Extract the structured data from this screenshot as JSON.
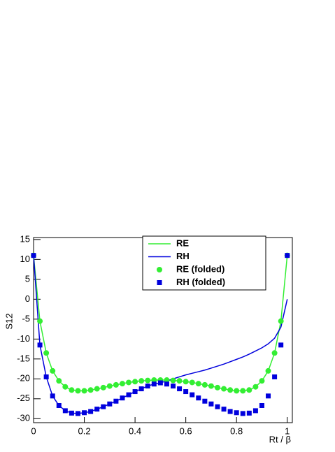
{
  "chart_data": {
    "type": "line",
    "xlabel": "Rt / β",
    "ylabel": "S12",
    "x": [
      0,
      0.025,
      0.05,
      0.075,
      0.1,
      0.125,
      0.15,
      0.175,
      0.2,
      0.225,
      0.25,
      0.275,
      0.3,
      0.325,
      0.35,
      0.375,
      0.4,
      0.425,
      0.45,
      0.475,
      0.5,
      0.525,
      0.55,
      0.575,
      0.6,
      0.625,
      0.65,
      0.675,
      0.7,
      0.725,
      0.75,
      0.775,
      0.8,
      0.825,
      0.85,
      0.875,
      0.9,
      0.925,
      0.95,
      0.975,
      1
    ],
    "series": [
      {
        "name": "RE",
        "color": "#33ee33",
        "style": "line",
        "values": [
          11,
          -5.5,
          -13.5,
          -18,
          -20.5,
          -22,
          -22.8,
          -23,
          -23,
          -22.8,
          -22.5,
          -22.2,
          -21.8,
          -21.5,
          -21.2,
          -20.9,
          -20.7,
          -20.5,
          -20.4,
          -20.3,
          -20.3,
          -20.3,
          -20.4,
          -20.5,
          -20.7,
          -20.9,
          -21.2,
          -21.5,
          -21.8,
          -22.2,
          -22.5,
          -22.8,
          -23,
          -23,
          -22.8,
          -22,
          -20.5,
          -18,
          -13.5,
          -5.5,
          11
        ]
      },
      {
        "name": "RH",
        "color": "#0000dd",
        "style": "line",
        "values": [
          11,
          -11.5,
          -19.5,
          -24.3,
          -26.7,
          -28,
          -28.6,
          -28.7,
          -28.5,
          -28.2,
          -27.6,
          -27,
          -26.3,
          -25.6,
          -24.8,
          -24,
          -23.2,
          -22.5,
          -21.8,
          -21.3,
          -21,
          -20.5,
          -20,
          -19.5,
          -19,
          -18.6,
          -18.2,
          -17.8,
          -17.3,
          -16.8,
          -16.3,
          -15.7,
          -15.1,
          -14.5,
          -13.8,
          -13,
          -12.2,
          -11.2,
          -9.8,
          -7,
          0
        ]
      },
      {
        "name": "RE (folded)",
        "color": "#33ee33",
        "style": "circle",
        "values": [
          11,
          -5.5,
          -13.5,
          -18,
          -20.5,
          -22,
          -22.8,
          -23,
          -23,
          -22.8,
          -22.5,
          -22.2,
          -21.8,
          -21.5,
          -21.2,
          -20.9,
          -20.7,
          -20.5,
          -20.4,
          -20.3,
          -20.3,
          -20.3,
          -20.4,
          -20.5,
          -20.7,
          -20.9,
          -21.2,
          -21.5,
          -21.8,
          -22.2,
          -22.5,
          -22.8,
          -23,
          -23,
          -22.8,
          -22,
          -20.5,
          -18,
          -13.5,
          -5.5,
          11
        ]
      },
      {
        "name": "RH (folded)",
        "color": "#0000dd",
        "style": "square",
        "values": [
          11,
          -11.5,
          -19.5,
          -24.3,
          -26.7,
          -28,
          -28.6,
          -28.7,
          -28.5,
          -28.2,
          -27.6,
          -27,
          -26.3,
          -25.6,
          -24.8,
          -24,
          -23.2,
          -22.5,
          -21.8,
          -21.3,
          -21,
          -21.3,
          -21.8,
          -22.5,
          -23.2,
          -24,
          -24.8,
          -25.6,
          -26.3,
          -27,
          -27.6,
          -28.2,
          -28.5,
          -28.7,
          -28.6,
          -28,
          -26.7,
          -24.3,
          -19.5,
          -11.5,
          11
        ]
      }
    ],
    "xlim": [
      0,
      1.02
    ],
    "ylim": [
      -31,
      15.5
    ],
    "xticks": [
      0,
      0.2,
      0.4,
      0.6,
      0.8,
      1
    ],
    "yticks": [
      15,
      10,
      5,
      0,
      -5,
      -10,
      -15,
      -20,
      -25,
      -30
    ],
    "legend": "top-right"
  }
}
